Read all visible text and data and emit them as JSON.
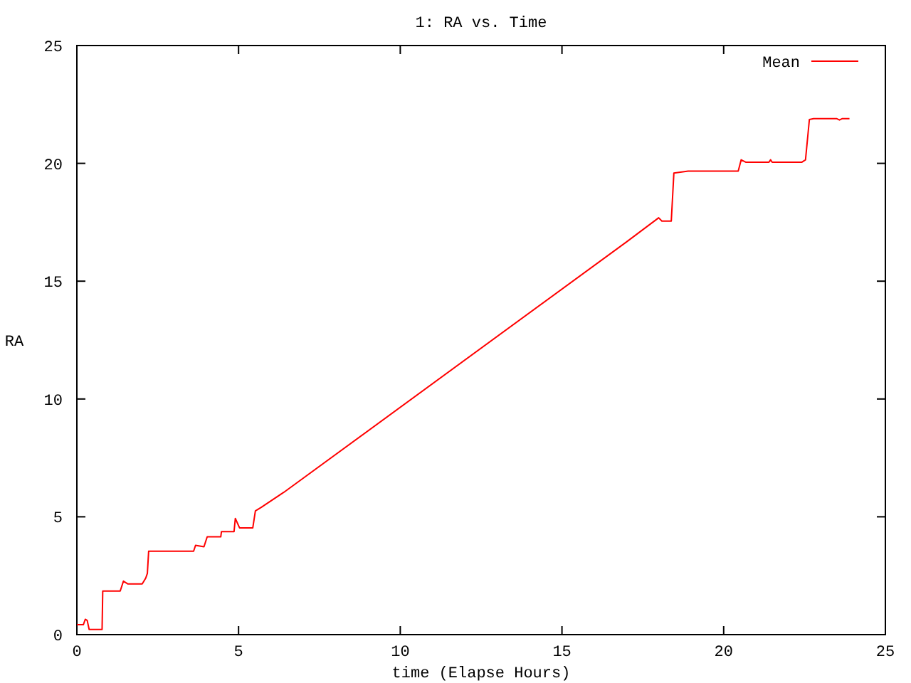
{
  "chart_data": {
    "type": "line",
    "title": "1: RA vs. Time",
    "xlabel": "time (Elapse Hours)",
    "ylabel": "RA",
    "xlim": [
      0,
      25
    ],
    "ylim": [
      0,
      25
    ],
    "xticks": [
      0,
      5,
      10,
      15,
      20,
      25
    ],
    "yticks": [
      0,
      5,
      10,
      15,
      20,
      25
    ],
    "legend": "top right",
    "grid": false,
    "series": [
      {
        "name": "Mean",
        "color": "#ff0000",
        "x": [
          0,
          0.2,
          0.26,
          0.32,
          0.38,
          0.78,
          0.8,
          1.34,
          1.44,
          1.58,
          2.02,
          2.13,
          2.18,
          2.22,
          3.61,
          3.67,
          3.93,
          4.03,
          4.45,
          4.47,
          4.86,
          4.9,
          5.03,
          5.44,
          5.52,
          5.7,
          6.4,
          17.0,
          17.99,
          18.09,
          18.38,
          18.46,
          18.9,
          20.45,
          20.54,
          20.68,
          21.4,
          21.45,
          21.5,
          22.42,
          22.53,
          22.65,
          22.78,
          23.49,
          23.58,
          23.67,
          23.89
        ],
        "values": [
          0.42,
          0.42,
          0.65,
          0.6,
          0.22,
          0.22,
          1.85,
          1.85,
          2.27,
          2.15,
          2.15,
          2.4,
          2.6,
          3.54,
          3.54,
          3.79,
          3.73,
          4.15,
          4.15,
          4.37,
          4.37,
          4.93,
          4.53,
          4.53,
          5.25,
          5.4,
          6.04,
          16.67,
          17.69,
          17.55,
          17.55,
          19.59,
          19.67,
          19.67,
          20.15,
          20.05,
          20.05,
          20.15,
          20.05,
          20.05,
          20.15,
          21.86,
          21.9,
          21.9,
          21.84,
          21.9,
          21.9
        ]
      }
    ]
  }
}
